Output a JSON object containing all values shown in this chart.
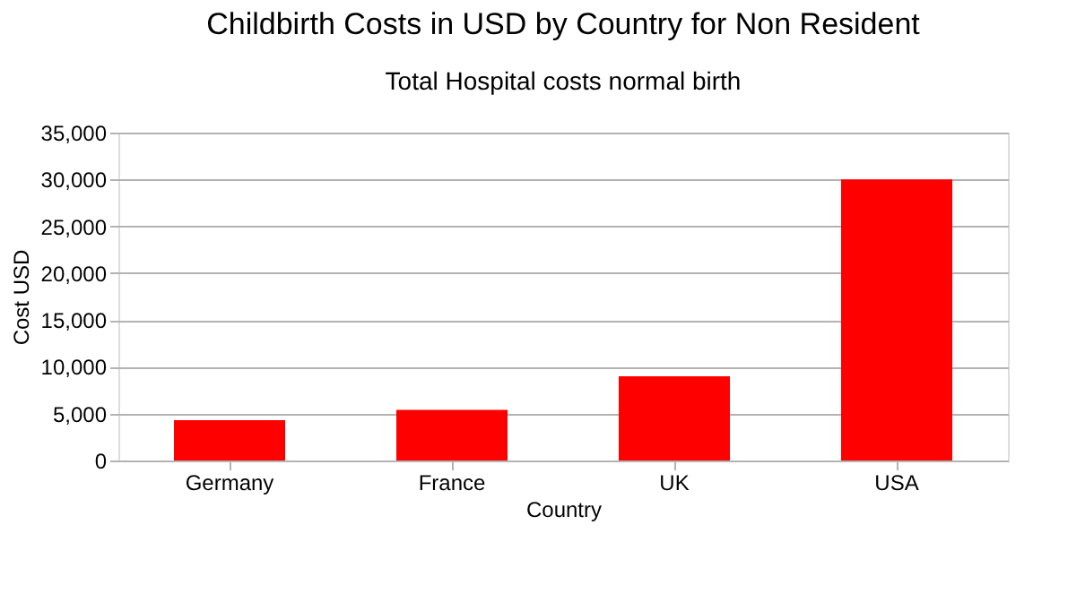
{
  "chart_data": {
    "type": "bar",
    "title": "Childbirth Costs in USD by Country for Non Resident",
    "subtitle": "Total Hospital costs normal birth",
    "xlabel": "Country",
    "ylabel": "Cost USD",
    "categories": [
      "Germany",
      "France",
      "UK",
      "USA"
    ],
    "values": [
      4300,
      5400,
      9000,
      30000
    ],
    "color": "#ff0000",
    "ylim": [
      0,
      35000
    ],
    "yticks": [
      {
        "value": 0,
        "label": "0"
      },
      {
        "value": 5000,
        "label": "5,000"
      },
      {
        "value": 10000,
        "label": "10,000"
      },
      {
        "value": 15000,
        "label": "15,000"
      },
      {
        "value": 20000,
        "label": "20,000"
      },
      {
        "value": 25000,
        "label": "25,000"
      },
      {
        "value": 30000,
        "label": "30,000"
      },
      {
        "value": 35000,
        "label": "35,000"
      }
    ],
    "grid": "y"
  }
}
